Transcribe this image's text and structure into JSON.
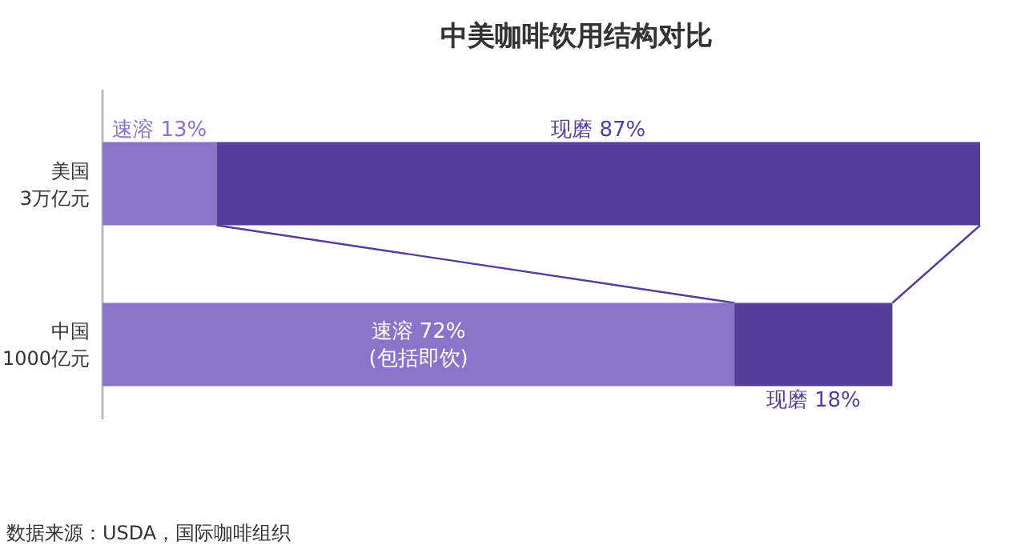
{
  "chart_data": {
    "type": "bar",
    "title": "中美咖啡饮用结构对比",
    "orientation": "horizontal",
    "stacked": true,
    "categories": [
      "美国\n3万亿元",
      "中国\n1000亿元"
    ],
    "series": [
      {
        "color": "#8b73c9",
        "values": [
          13,
          72
        ],
        "value_labels": [
          "速溶 13%",
          "速溶 72%\n(包括即饮)"
        ]
      },
      {
        "color": "#563d9a",
        "values": [
          87,
          18
        ],
        "value_labels": [
          "现磨 87%",
          "现磨 18%"
        ]
      }
    ],
    "annotations": [
      "数据来源：USDA，国际咖啡组织"
    ]
  }
}
